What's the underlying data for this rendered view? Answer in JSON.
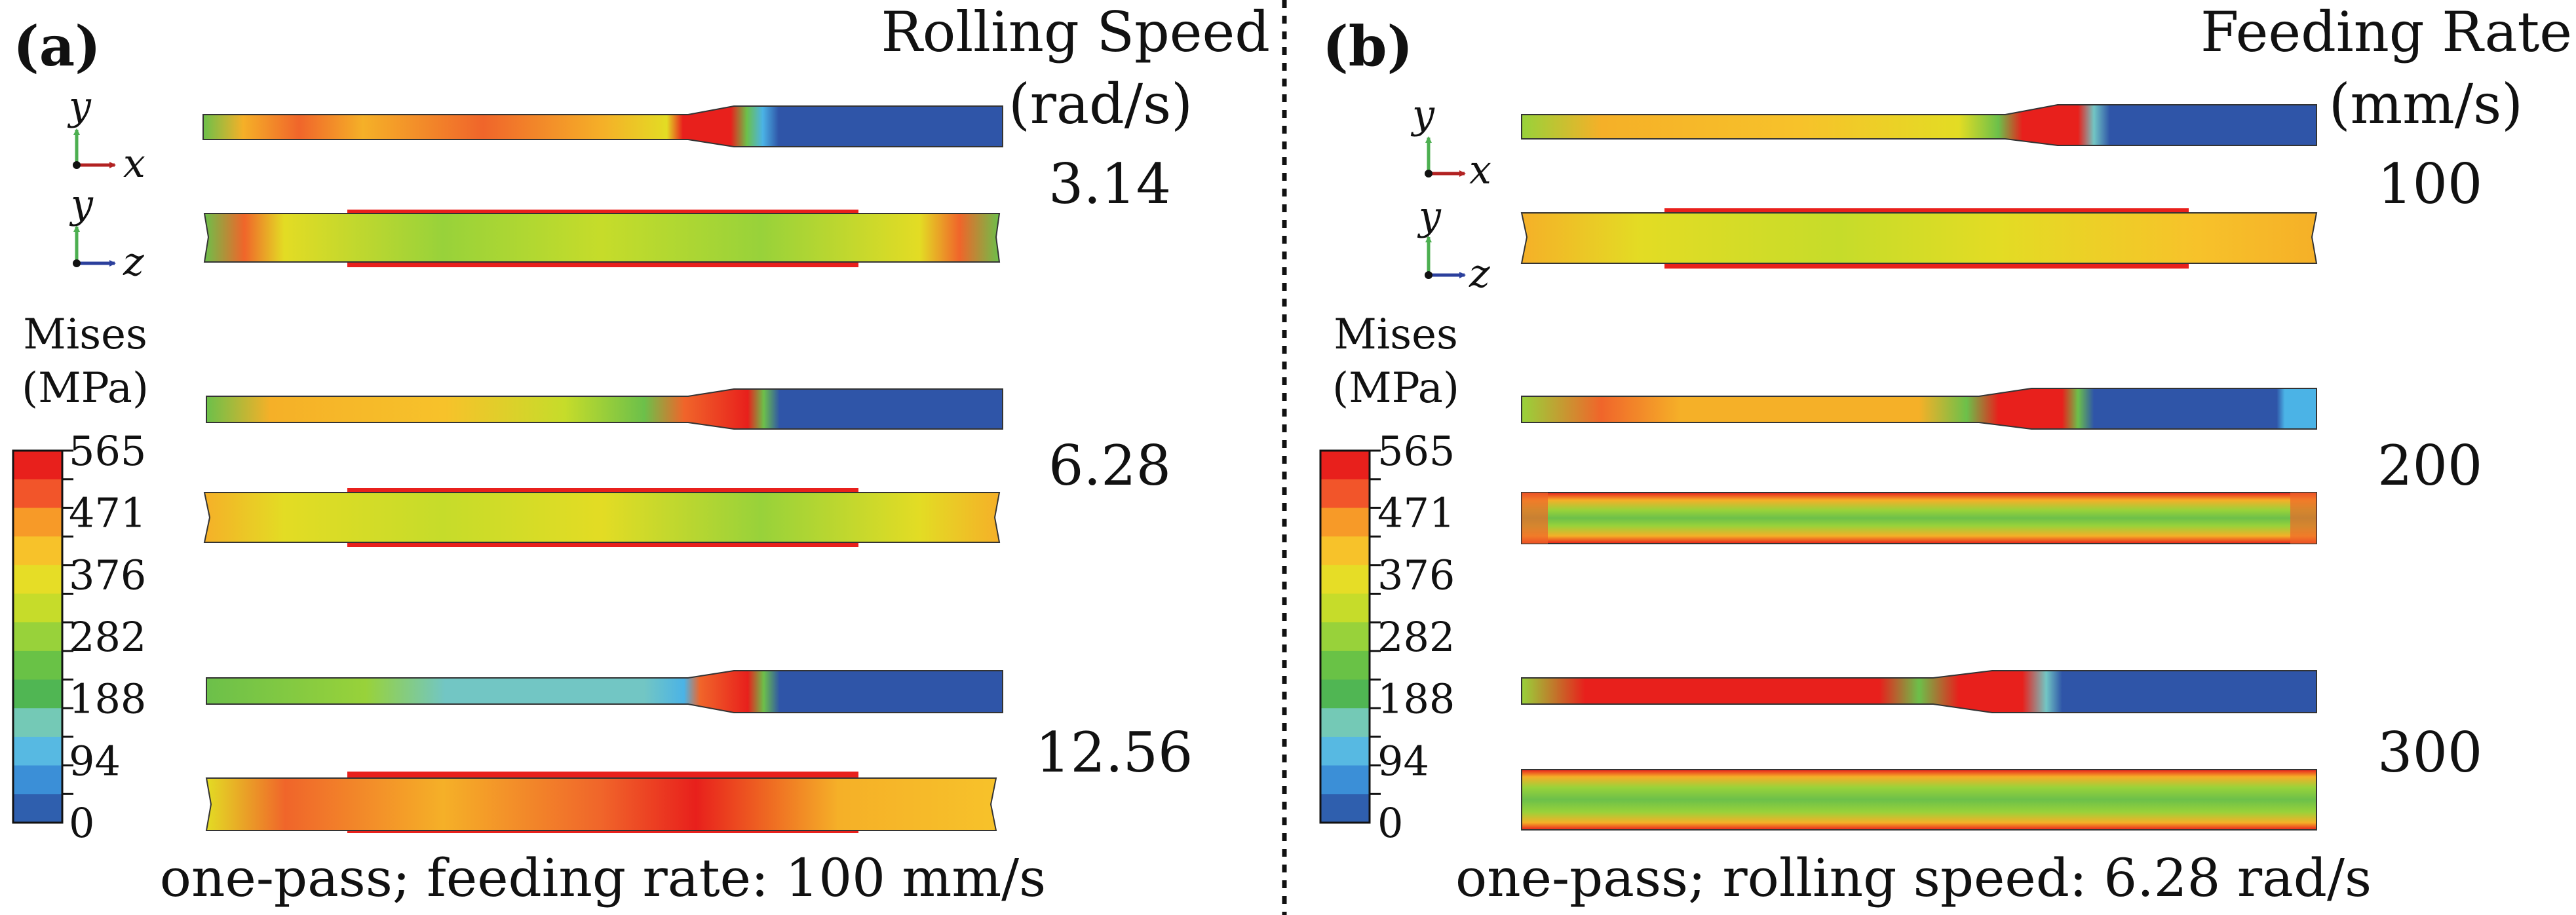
{
  "panels": [
    {
      "id": "a",
      "label": "(a)",
      "param_title_line1": "Rolling Speed",
      "param_title_line2": "(rad/s)",
      "values": [
        "3.14",
        "6.28",
        "12.56"
      ],
      "caption": "one-pass; feeding rate: 100 mm/s",
      "legend_title_line1": "Mises",
      "legend_title_line2": "(MPa)"
    },
    {
      "id": "b",
      "label": "(b)",
      "param_title_line1": "Feeding Rate",
      "param_title_line2": "(mm/s)",
      "values": [
        "100",
        "200",
        "300"
      ],
      "caption": "one-pass; rolling speed: 6.28 rad/s",
      "legend_title_line1": "Mises",
      "legend_title_line2": "(MPa)"
    }
  ],
  "axes_triad": {
    "xy": [
      "y",
      "x"
    ],
    "yz": [
      "y",
      "z"
    ]
  },
  "legend_ticks": [
    "565",
    "471",
    "376",
    "282",
    "188",
    "94",
    "0"
  ],
  "legend_colors": [
    "#e8201c",
    "#f2552a",
    "#f79a28",
    "#f7c22a",
    "#e6dd26",
    "#c6dc2a",
    "#98d23a",
    "#69c246",
    "#50b653",
    "#74c9b6",
    "#57b9e2",
    "#3b8fd7",
    "#2f5fae"
  ],
  "colors": {
    "red": "#e8201c",
    "orange": "#f0652a",
    "yellow_orange": "#f5b028",
    "yellow": "#e3dc24",
    "green": "#6cc04a",
    "cyan": "#72c6c4",
    "light_blue": "#4bb3e6",
    "blue": "#2f55a8",
    "x_axis": "#b22222",
    "y_axis": "#4caf50",
    "z_axis": "#2b3f9c"
  }
}
